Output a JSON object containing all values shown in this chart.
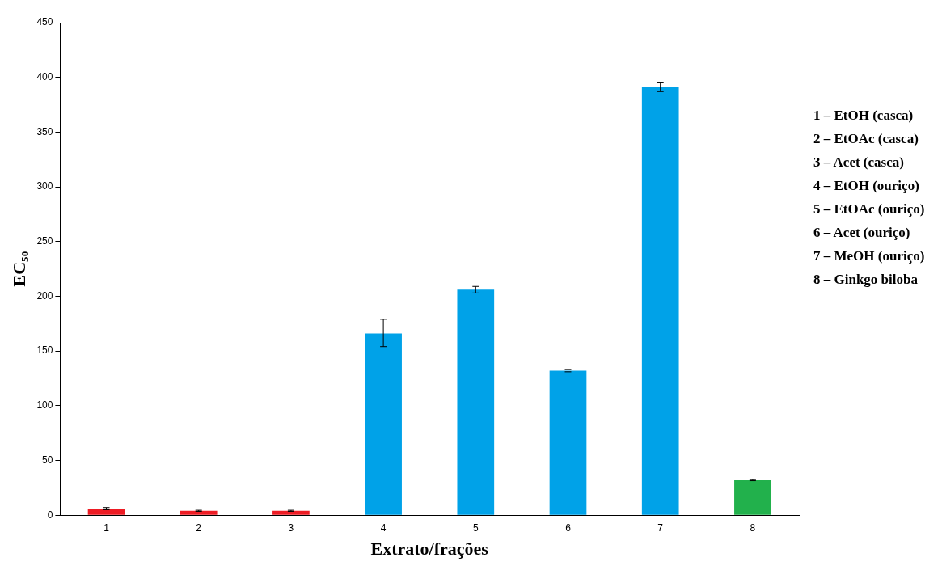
{
  "chart_data": {
    "type": "bar",
    "xlabel": "Extrato/frações",
    "ylabel": "EC₅₀",
    "categories": [
      "1",
      "2",
      "3",
      "4",
      "5",
      "6",
      "7",
      "8"
    ],
    "values": [
      6,
      4,
      4,
      166,
      206,
      132,
      391,
      32
    ],
    "colors": [
      "#ed1c24",
      "#ed1c24",
      "#ed1c24",
      "#00a2e8",
      "#00a2e8",
      "#00a2e8",
      "#00a2e8",
      "#22b14c"
    ],
    "errors": [
      1,
      0.5,
      0.5,
      [
        154,
        179
      ],
      3,
      1,
      4,
      0.5
    ],
    "ylim": [
      0,
      450
    ],
    "yticks": [
      0,
      50,
      100,
      150,
      200,
      250,
      300,
      350,
      400,
      450
    ],
    "grid": false,
    "legend": false,
    "annotations": [
      "1 – EtOH (casca)",
      "2 – EtOAc (casca)",
      "3 – Acet (casca)",
      "4 – EtOH (ouriço)",
      "5 – EtOAc (ouriço)",
      "6 – Acet (ouriço)",
      "7 – MeOH (ouriço)",
      "8 – Ginkgo biloba"
    ]
  }
}
